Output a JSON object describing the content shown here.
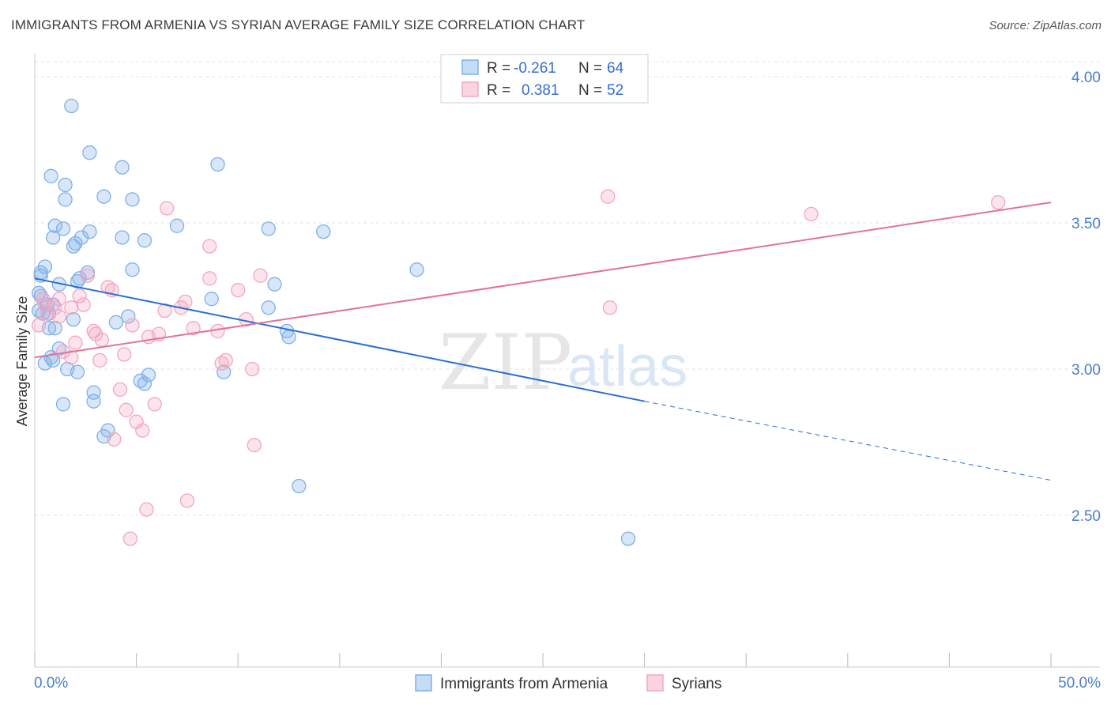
{
  "header": {
    "title": "IMMIGRANTS FROM ARMENIA VS SYRIAN AVERAGE FAMILY SIZE CORRELATION CHART",
    "source": "Source: ZipAtlas.com"
  },
  "watermark": {
    "zip": "ZIP",
    "atlas": "atlas"
  },
  "legend_top": [
    {
      "r_label": "R =",
      "r_value": "-0.261",
      "n_label": "N =",
      "n_value": "64",
      "color": "#7fb0e8"
    },
    {
      "r_label": "R =",
      "r_value": "0.381",
      "n_label": "N =",
      "n_value": "52",
      "color": "#f3a6c0"
    }
  ],
  "legend_bottom": [
    "Immigrants from Armenia",
    "Syrians"
  ],
  "chart_data": {
    "type": "scatter",
    "title": "IMMIGRANTS FROM ARMENIA VS SYRIAN AVERAGE FAMILY SIZE CORRELATION CHART",
    "xlabel": "",
    "ylabel": "Average Family Size",
    "xlim": [
      0,
      50
    ],
    "ylim": [
      2.1,
      4.1
    ],
    "x_tick_labels": [
      "0.0%",
      "50.0%"
    ],
    "y_ticks": [
      2.5,
      3.0,
      3.5,
      4.0
    ],
    "y_tick_labels": [
      "2.50",
      "3.00",
      "3.50",
      "4.00"
    ],
    "grid": "horizontal dashed",
    "legend": "top-center",
    "series": [
      {
        "name": "Immigrants from Armenia",
        "color": "#7fb0e8",
        "trend": {
          "x0": 0,
          "y0": 3.31,
          "x1": 30,
          "y1": 2.89,
          "dashed_to_x": 50,
          "dashed_to_y": 2.62
        },
        "points": [
          [
            1.8,
            3.9
          ],
          [
            2.7,
            3.74
          ],
          [
            4.3,
            3.69
          ],
          [
            0.8,
            3.66
          ],
          [
            1.5,
            3.63
          ],
          [
            3.4,
            3.59
          ],
          [
            4.8,
            3.58
          ],
          [
            1.5,
            3.58
          ],
          [
            9.0,
            3.7
          ],
          [
            1.0,
            3.49
          ],
          [
            1.4,
            3.48
          ],
          [
            2.7,
            3.47
          ],
          [
            7.0,
            3.49
          ],
          [
            11.5,
            3.48
          ],
          [
            14.2,
            3.47
          ],
          [
            0.9,
            3.45
          ],
          [
            2.3,
            3.45
          ],
          [
            4.3,
            3.45
          ],
          [
            5.4,
            3.44
          ],
          [
            2.0,
            3.43
          ],
          [
            1.9,
            3.42
          ],
          [
            0.5,
            3.35
          ],
          [
            4.8,
            3.34
          ],
          [
            18.8,
            3.34
          ],
          [
            0.3,
            3.33
          ],
          [
            2.6,
            3.33
          ],
          [
            2.2,
            3.31
          ],
          [
            2.1,
            3.3
          ],
          [
            1.2,
            3.29
          ],
          [
            11.8,
            3.29
          ],
          [
            0.2,
            3.26
          ],
          [
            0.3,
            3.25
          ],
          [
            8.7,
            3.24
          ],
          [
            0.6,
            3.22
          ],
          [
            0.9,
            3.22
          ],
          [
            11.5,
            3.21
          ],
          [
            0.2,
            3.2
          ],
          [
            0.4,
            3.19
          ],
          [
            0.7,
            3.19
          ],
          [
            4.6,
            3.18
          ],
          [
            1.9,
            3.17
          ],
          [
            4.0,
            3.16
          ],
          [
            0.7,
            3.14
          ],
          [
            1.0,
            3.14
          ],
          [
            12.4,
            3.13
          ],
          [
            12.5,
            3.11
          ],
          [
            1.2,
            3.07
          ],
          [
            0.8,
            3.04
          ],
          [
            0.9,
            3.03
          ],
          [
            0.5,
            3.02
          ],
          [
            1.6,
            3.0
          ],
          [
            2.1,
            2.99
          ],
          [
            5.6,
            2.98
          ],
          [
            9.3,
            2.99
          ],
          [
            5.2,
            2.96
          ],
          [
            5.4,
            2.95
          ],
          [
            2.9,
            2.92
          ],
          [
            2.9,
            2.89
          ],
          [
            1.4,
            2.88
          ],
          [
            3.6,
            2.79
          ],
          [
            3.4,
            2.77
          ],
          [
            13.0,
            2.6
          ],
          [
            29.2,
            2.42
          ],
          [
            0.3,
            3.32
          ]
        ]
      },
      {
        "name": "Syrians",
        "color": "#f3a6c0",
        "trend": {
          "x0": 0,
          "y0": 3.04,
          "x1": 50,
          "y1": 3.57
        },
        "points": [
          [
            28.2,
            3.59
          ],
          [
            47.4,
            3.57
          ],
          [
            6.5,
            3.55
          ],
          [
            38.2,
            3.53
          ],
          [
            8.6,
            3.42
          ],
          [
            2.6,
            3.32
          ],
          [
            11.1,
            3.32
          ],
          [
            8.6,
            3.31
          ],
          [
            3.6,
            3.28
          ],
          [
            3.8,
            3.27
          ],
          [
            10.0,
            3.27
          ],
          [
            2.2,
            3.25
          ],
          [
            1.2,
            3.24
          ],
          [
            2.4,
            3.22
          ],
          [
            7.4,
            3.23
          ],
          [
            0.5,
            3.22
          ],
          [
            1.8,
            3.21
          ],
          [
            7.2,
            3.21
          ],
          [
            6.4,
            3.2
          ],
          [
            28.3,
            3.21
          ],
          [
            0.6,
            3.19
          ],
          [
            1.2,
            3.18
          ],
          [
            10.4,
            3.17
          ],
          [
            4.8,
            3.15
          ],
          [
            7.8,
            3.14
          ],
          [
            9.0,
            3.13
          ],
          [
            2.9,
            3.13
          ],
          [
            3.0,
            3.12
          ],
          [
            6.1,
            3.12
          ],
          [
            5.6,
            3.11
          ],
          [
            3.3,
            3.1
          ],
          [
            2.0,
            3.09
          ],
          [
            1.4,
            3.06
          ],
          [
            4.4,
            3.05
          ],
          [
            1.8,
            3.04
          ],
          [
            3.2,
            3.03
          ],
          [
            9.4,
            3.03
          ],
          [
            9.2,
            3.02
          ],
          [
            10.7,
            3.0
          ],
          [
            4.2,
            2.93
          ],
          [
            5.9,
            2.88
          ],
          [
            4.5,
            2.86
          ],
          [
            5.0,
            2.82
          ],
          [
            5.3,
            2.79
          ],
          [
            3.9,
            2.76
          ],
          [
            10.8,
            2.74
          ],
          [
            7.5,
            2.55
          ],
          [
            5.5,
            2.52
          ],
          [
            4.7,
            2.42
          ],
          [
            0.2,
            3.15
          ],
          [
            1.0,
            3.21
          ],
          [
            0.4,
            3.24
          ]
        ]
      }
    ]
  }
}
